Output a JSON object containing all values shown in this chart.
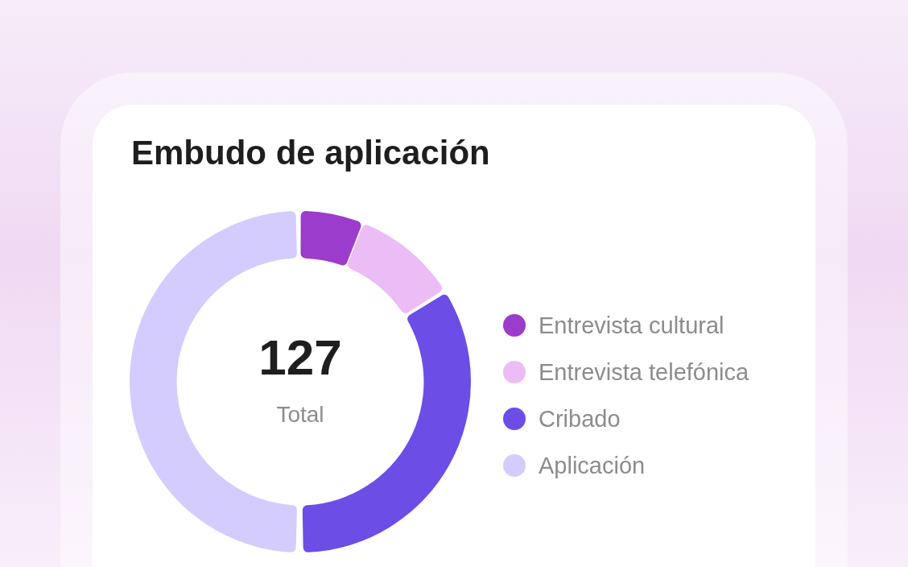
{
  "chart_data": {
    "type": "donut",
    "title": "Embudo de aplicación",
    "categories": [
      "Entrevista cultural",
      "Entrevista telefónica",
      "Cribado",
      "Aplicación"
    ],
    "values": [
      6,
      10,
      34,
      50
    ],
    "colors": [
      "#9b3ccc",
      "#ebbcf5",
      "#6c4de6",
      "#d4ccfc"
    ],
    "annotations": [
      "127",
      "Total"
    ],
    "legend": "right"
  }
}
